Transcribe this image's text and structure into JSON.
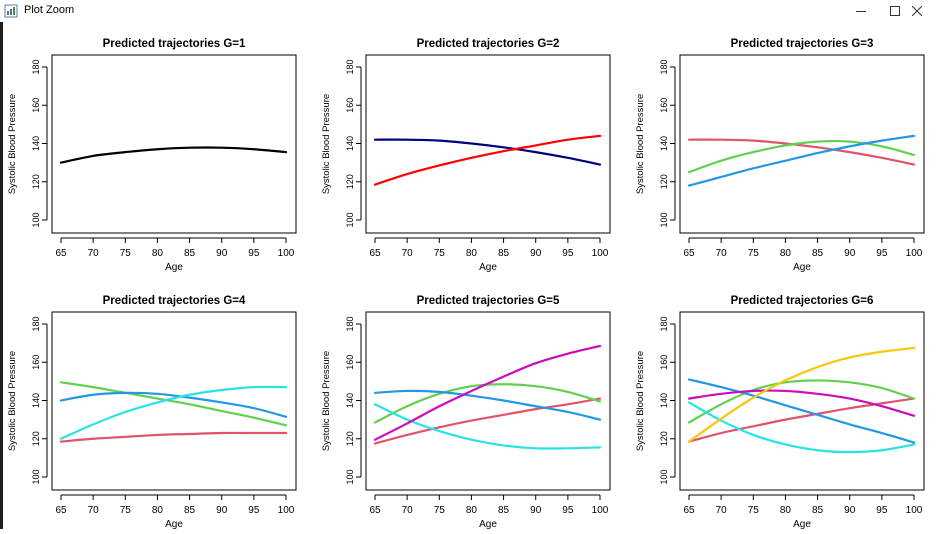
{
  "window": {
    "title": "Plot Zoom",
    "icons": {
      "app": "chart-window-icon",
      "minimize": "minimize-icon",
      "maximize": "maximize-icon",
      "close": "close-icon"
    }
  },
  "chart_data": [
    {
      "type": "line",
      "title": "Predicted trajectories G=1",
      "xlabel": "Age",
      "ylabel": "Systolic Blood Pressure",
      "xticks": [
        65,
        70,
        75,
        80,
        85,
        90,
        95,
        100
      ],
      "yticks": [
        100,
        120,
        140,
        160,
        180
      ],
      "xlim": [
        65,
        100
      ],
      "ylim": [
        100,
        180
      ],
      "x": [
        65,
        70,
        75,
        80,
        85,
        90,
        95,
        100
      ],
      "series": [
        {
          "color": "#000000",
          "values": [
            130,
            133.5,
            135.5,
            137,
            137.8,
            137.8,
            137,
            135.5
          ]
        }
      ]
    },
    {
      "type": "line",
      "title": "Predicted trajectories G=2",
      "xlabel": "Age",
      "ylabel": "Systolic Blood Pressure",
      "xticks": [
        65,
        70,
        75,
        80,
        85,
        90,
        95,
        100
      ],
      "yticks": [
        100,
        120,
        140,
        160,
        180
      ],
      "xlim": [
        65,
        100
      ],
      "ylim": [
        100,
        180
      ],
      "x": [
        65,
        70,
        75,
        80,
        85,
        90,
        95,
        100
      ],
      "series": [
        {
          "color": "#00007f",
          "values": [
            142,
            142,
            141.5,
            140,
            138,
            135.5,
            132.5,
            129
          ]
        },
        {
          "color": "#ff0000",
          "values": [
            118.5,
            124,
            128.5,
            132.5,
            136,
            139,
            142,
            144
          ]
        }
      ]
    },
    {
      "type": "line",
      "title": "Predicted trajectories G=3",
      "xlabel": "Age",
      "ylabel": "Systolic Blood Pressure",
      "xticks": [
        65,
        70,
        75,
        80,
        85,
        90,
        95,
        100
      ],
      "yticks": [
        100,
        120,
        140,
        160,
        180
      ],
      "xlim": [
        65,
        100
      ],
      "ylim": [
        100,
        180
      ],
      "x": [
        65,
        70,
        75,
        80,
        85,
        90,
        95,
        100
      ],
      "series": [
        {
          "color": "#df536b",
          "values": [
            142,
            142,
            141.5,
            140,
            138,
            135.5,
            132.5,
            129
          ]
        },
        {
          "color": "#61d04f",
          "values": [
            125,
            131,
            135.5,
            139,
            141,
            141,
            138.5,
            134
          ]
        },
        {
          "color": "#2297e6",
          "values": [
            118,
            122.5,
            127,
            131,
            135,
            138.5,
            141.5,
            144
          ]
        }
      ]
    },
    {
      "type": "line",
      "title": "Predicted trajectories G=4",
      "xlabel": "Age",
      "ylabel": "Systolic Blood Pressure",
      "xticks": [
        65,
        70,
        75,
        80,
        85,
        90,
        95,
        100
      ],
      "yticks": [
        100,
        120,
        140,
        160,
        180
      ],
      "xlim": [
        65,
        100
      ],
      "ylim": [
        100,
        180
      ],
      "x": [
        65,
        70,
        75,
        80,
        85,
        90,
        95,
        100
      ],
      "series": [
        {
          "color": "#df536b",
          "values": [
            118.5,
            120,
            121,
            122,
            122.5,
            123,
            123,
            123
          ]
        },
        {
          "color": "#61d04f",
          "values": [
            149.5,
            147,
            144,
            141,
            138,
            134.5,
            131,
            127
          ]
        },
        {
          "color": "#2297e6",
          "values": [
            140,
            143,
            144,
            143.5,
            141.5,
            139,
            136,
            131.5
          ]
        },
        {
          "color": "#28e2e5",
          "values": [
            120,
            127.5,
            134,
            139,
            143,
            145.5,
            147,
            147
          ]
        }
      ]
    },
    {
      "type": "line",
      "title": "Predicted trajectories G=5",
      "xlabel": "Age",
      "ylabel": "Systolic Blood Pressure",
      "xticks": [
        65,
        70,
        75,
        80,
        85,
        90,
        95,
        100
      ],
      "yticks": [
        100,
        120,
        140,
        160,
        180
      ],
      "xlim": [
        65,
        100
      ],
      "ylim": [
        100,
        180
      ],
      "x": [
        65,
        70,
        75,
        80,
        85,
        90,
        95,
        100
      ],
      "series": [
        {
          "color": "#df536b",
          "values": [
            117.5,
            122,
            126,
            129.5,
            132.5,
            135.5,
            138,
            141
          ]
        },
        {
          "color": "#61d04f",
          "values": [
            128.5,
            137,
            143.5,
            147.5,
            148.5,
            147.5,
            144.5,
            139.5
          ]
        },
        {
          "color": "#2297e6",
          "values": [
            144,
            145,
            144.5,
            142.5,
            140,
            137,
            134,
            130
          ]
        },
        {
          "color": "#28e2e5",
          "values": [
            138,
            130,
            124,
            119.5,
            116.5,
            115,
            115,
            115.5
          ]
        },
        {
          "color": "#cd0bbc",
          "values": [
            119.5,
            128,
            137,
            145,
            152.5,
            159.5,
            164.5,
            168.5
          ]
        }
      ]
    },
    {
      "type": "line",
      "title": "Predicted trajectories G=6",
      "xlabel": "Age",
      "ylabel": "Systolic Blood Pressure",
      "xticks": [
        65,
        70,
        75,
        80,
        85,
        90,
        95,
        100
      ],
      "yticks": [
        100,
        120,
        140,
        160,
        180
      ],
      "xlim": [
        65,
        100
      ],
      "ylim": [
        100,
        180
      ],
      "x": [
        65,
        70,
        75,
        80,
        85,
        90,
        95,
        100
      ],
      "series": [
        {
          "color": "#df536b",
          "values": [
            118.5,
            123,
            126.5,
            130,
            133,
            136,
            138.5,
            141
          ]
        },
        {
          "color": "#61d04f",
          "values": [
            128.5,
            138,
            145.5,
            149.5,
            150.5,
            149.5,
            146.5,
            141
          ]
        },
        {
          "color": "#2297e6",
          "values": [
            151,
            147,
            142.5,
            137.5,
            132.5,
            127.5,
            123,
            118
          ]
        },
        {
          "color": "#28e2e5",
          "values": [
            139,
            129.5,
            122,
            117,
            114,
            113,
            114,
            117
          ]
        },
        {
          "color": "#cd0bbc",
          "values": [
            141,
            143.5,
            145,
            145,
            143.5,
            141,
            137,
            132
          ]
        },
        {
          "color": "#f5c710",
          "values": [
            118.5,
            130.5,
            141.5,
            150.5,
            157.5,
            162.5,
            165.5,
            167.5
          ]
        }
      ]
    }
  ]
}
